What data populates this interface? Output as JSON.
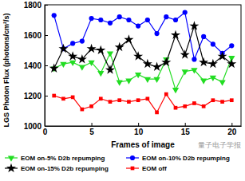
{
  "chart_data": {
    "type": "line",
    "xlabel": "Frames of image",
    "ylabel": "LGS Photon Flux (photons/cm²/s)",
    "annotations": [
      "量子电子学报"
    ],
    "x": [
      1,
      2,
      3,
      4,
      5,
      6,
      7,
      8,
      9,
      10,
      11,
      12,
      13,
      14,
      15,
      16,
      17,
      18,
      19,
      20
    ],
    "xlim": [
      0,
      21
    ],
    "xticks": [
      0,
      5,
      10,
      15,
      20
    ],
    "ylim": [
      1000,
      1800
    ],
    "yticks": [
      1000,
      1200,
      1400,
      1600,
      1800
    ],
    "grid": false,
    "legend": "bottom",
    "series": [
      {
        "name": "EOM on-5% D2b repumping",
        "color": "#22dd22",
        "marker": "triangle-down",
        "values": [
          1380,
          1410,
          1420,
          1390,
          1420,
          1350,
          1480,
          1290,
          1300,
          1340,
          1310,
          1310,
          1440,
          1240,
          1360,
          1370,
          1300,
          1320,
          1290,
          1450
        ]
      },
      {
        "name": "EOM on-10% D2b repumping",
        "color": "#0000ff",
        "marker": "circle",
        "values": [
          1730,
          1510,
          1545,
          1560,
          1710,
          1700,
          1680,
          1720,
          1700,
          1660,
          1700,
          1610,
          1720,
          1700,
          1750,
          1440,
          1590,
          1540,
          1480,
          1530
        ]
      },
      {
        "name": "EOM on-15% D2b repumping",
        "color": "#000000",
        "marker": "star",
        "values": [
          1380,
          1510,
          1460,
          1440,
          1510,
          1500,
          1370,
          1520,
          1570,
          1460,
          1410,
          1390,
          1420,
          1600,
          1470,
          1660,
          1420,
          1410,
          1460,
          1410
        ]
      },
      {
        "name": "EOM off",
        "color": "#ff0000",
        "marker": "square",
        "values": [
          1200,
          1180,
          1190,
          1110,
          1130,
          1180,
          1160,
          1170,
          1160,
          1170,
          1180,
          1090,
          1210,
          1120,
          1130,
          1150,
          1130,
          1170,
          1160,
          1170
        ]
      }
    ]
  }
}
